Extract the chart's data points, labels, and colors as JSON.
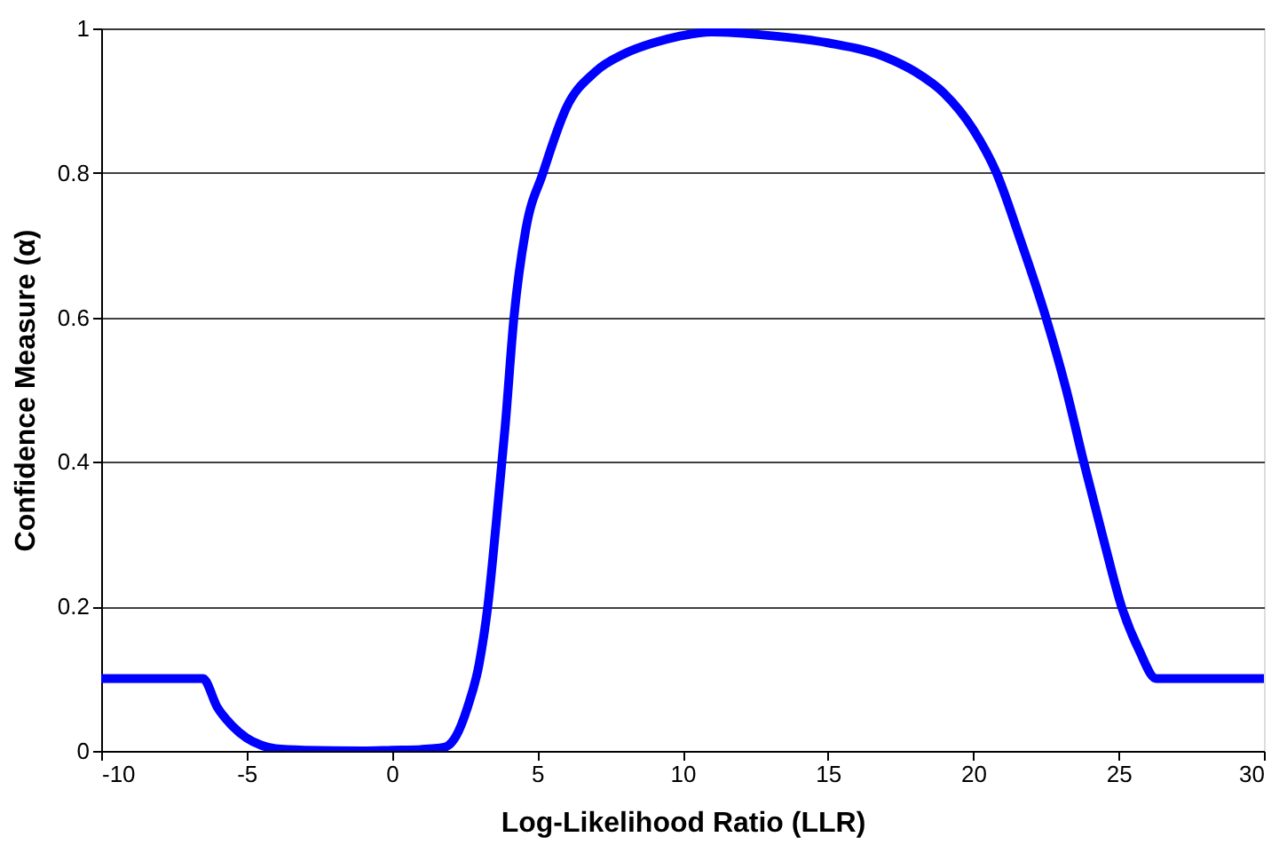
{
  "chart_data": {
    "type": "line",
    "xlabel": "Log-Likelihood Ratio (LLR)",
    "ylabel": "Confidence Measure (α)",
    "x": [
      -10,
      -6.5,
      -6,
      -5.5,
      -5,
      -4.5,
      -4,
      -3,
      -1,
      0,
      1,
      1.8,
      2.2,
      2.6,
      3,
      3.3,
      3.6,
      3.9,
      4.2,
      4.6,
      5.2,
      6,
      7,
      8,
      9,
      10,
      11,
      13,
      15,
      17,
      18,
      19,
      20,
      20.8,
      21.6,
      22.5,
      23.2,
      23.8,
      24.5,
      25.1,
      25.7,
      26.3,
      30
    ],
    "series": [
      {
        "color": "#0000ff",
        "values": [
          0.1,
          0.1,
          0.06,
          0.035,
          0.018,
          0.008,
          0.003,
          0.001,
          0,
          0.001,
          0.002,
          0.005,
          0.02,
          0.06,
          0.12,
          0.2,
          0.32,
          0.45,
          0.6,
          0.72,
          0.8,
          0.89,
          0.94,
          0.965,
          0.98,
          0.99,
          0.995,
          0.99,
          0.98,
          0.96,
          0.94,
          0.91,
          0.86,
          0.8,
          0.71,
          0.6,
          0.5,
          0.4,
          0.29,
          0.2,
          0.14,
          0.1,
          0.1
        ]
      }
    ],
    "xlim": [
      -10,
      30
    ],
    "xticks": [
      -10,
      -5,
      0,
      5,
      10,
      15,
      20,
      25,
      30
    ],
    "ylim": [
      0,
      1
    ],
    "yticks": [
      0,
      0.2,
      0.4,
      0.6,
      0.8,
      1
    ],
    "grid": "y",
    "marker": "none",
    "line_style": "solid"
  }
}
